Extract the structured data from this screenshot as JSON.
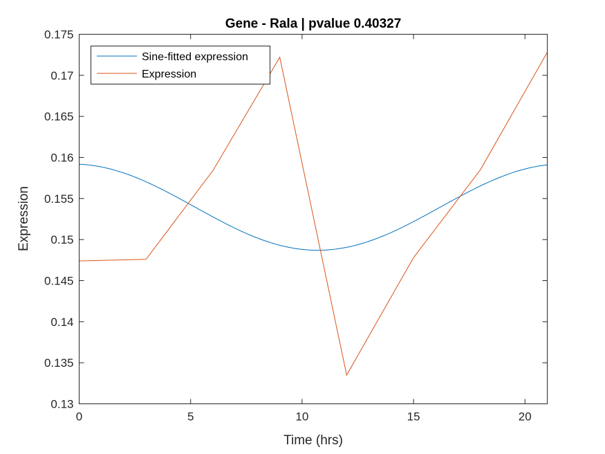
{
  "chart_data": {
    "type": "line",
    "title": "Gene - Rala | pvalue 0.40327",
    "xlabel": "Time (hrs)",
    "ylabel": "Expression",
    "xlim": [
      0,
      21
    ],
    "ylim": [
      0.13,
      0.175
    ],
    "xticks": [
      0,
      5,
      10,
      15,
      20
    ],
    "xtick_labels": [
      "0",
      "5",
      "10",
      "15",
      "20"
    ],
    "yticks": [
      0.13,
      0.135,
      0.14,
      0.145,
      0.15,
      0.155,
      0.16,
      0.165,
      0.17,
      0.175
    ],
    "ytick_labels": [
      "0.13",
      "0.135",
      "0.14",
      "0.145",
      "0.15",
      "0.155",
      "0.16",
      "0.165",
      "0.17",
      "0.175"
    ],
    "grid": false,
    "legend_position": "top-left",
    "series": [
      {
        "name": "Sine-fitted expression",
        "color": "#0072BD",
        "model": "sine",
        "mean": 0.15395,
        "amplitude": 0.00525,
        "peak_time": -0.3,
        "period": 22,
        "x_range": [
          0,
          21
        ]
      },
      {
        "name": "Expression",
        "color": "#D95319",
        "x": [
          0,
          3,
          6,
          9,
          12,
          15,
          18,
          21
        ],
        "y": [
          0.1474,
          0.1476,
          0.1584,
          0.1722,
          0.1335,
          0.1478,
          0.1585,
          0.1728
        ]
      }
    ]
  }
}
